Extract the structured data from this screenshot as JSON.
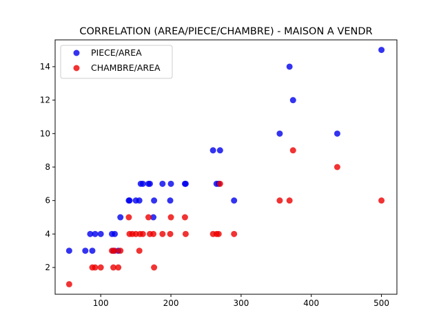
{
  "chart_data": {
    "type": "scatter",
    "title": "CORRELATION (AREA/PIECE/CHAMBRE) - MAISON A VENDR",
    "xlabel": "",
    "ylabel": "",
    "xlim": [
      35,
      522
    ],
    "ylim": [
      0.4,
      15.6
    ],
    "xticks": [
      100,
      200,
      300,
      400,
      500
    ],
    "yticks": [
      2,
      4,
      6,
      8,
      10,
      12,
      14
    ],
    "grid": false,
    "legend_position": "top-left",
    "series": [
      {
        "name": "PIECE/AREA",
        "color": "#0000ee",
        "points": [
          [
            55,
            3
          ],
          [
            78,
            3
          ],
          [
            85,
            4
          ],
          [
            88,
            3
          ],
          [
            92,
            4
          ],
          [
            100,
            4
          ],
          [
            116,
            4
          ],
          [
            118,
            3
          ],
          [
            120,
            4
          ],
          [
            125,
            3
          ],
          [
            128,
            5
          ],
          [
            140,
            6
          ],
          [
            141,
            6
          ],
          [
            150,
            6
          ],
          [
            155,
            6
          ],
          [
            157,
            7
          ],
          [
            160,
            7
          ],
          [
            168,
            7
          ],
          [
            170,
            7
          ],
          [
            175,
            5
          ],
          [
            176,
            6
          ],
          [
            188,
            7
          ],
          [
            200,
            7
          ],
          [
            199,
            6
          ],
          [
            220,
            7
          ],
          [
            221,
            7
          ],
          [
            260,
            9
          ],
          [
            265,
            7
          ],
          [
            268,
            7
          ],
          [
            270,
            9
          ],
          [
            290,
            6
          ],
          [
            355,
            10
          ],
          [
            369,
            14
          ],
          [
            374,
            12
          ],
          [
            437,
            10
          ],
          [
            500,
            15
          ]
        ]
      },
      {
        "name": "CHAMBRE/AREA",
        "color": "#ee0000",
        "points": [
          [
            55,
            1
          ],
          [
            88,
            2
          ],
          [
            92,
            2
          ],
          [
            100,
            2
          ],
          [
            116,
            3
          ],
          [
            118,
            2
          ],
          [
            120,
            3
          ],
          [
            125,
            2
          ],
          [
            128,
            3
          ],
          [
            140,
            5
          ],
          [
            141,
            4
          ],
          [
            145,
            4
          ],
          [
            150,
            4
          ],
          [
            155,
            3
          ],
          [
            156,
            4
          ],
          [
            160,
            4
          ],
          [
            168,
            5
          ],
          [
            170,
            4
          ],
          [
            175,
            4
          ],
          [
            176,
            2
          ],
          [
            188,
            4
          ],
          [
            200,
            5
          ],
          [
            199,
            4
          ],
          [
            220,
            5
          ],
          [
            221,
            4
          ],
          [
            260,
            4
          ],
          [
            265,
            4
          ],
          [
            268,
            4
          ],
          [
            270,
            7
          ],
          [
            290,
            4
          ],
          [
            355,
            6
          ],
          [
            369,
            6
          ],
          [
            374,
            9
          ],
          [
            437,
            8
          ],
          [
            500,
            6
          ]
        ]
      }
    ]
  }
}
